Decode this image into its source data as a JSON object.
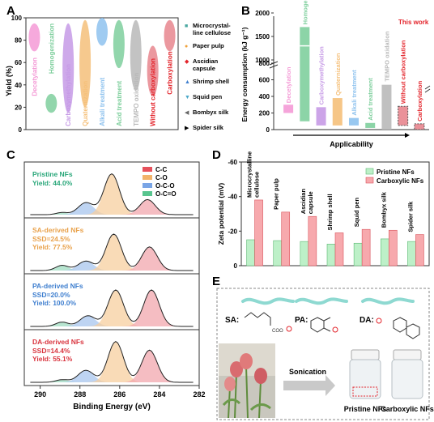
{
  "panels": {
    "a": "A",
    "b": "B",
    "c": "C",
    "d": "D",
    "e": "E"
  },
  "colors": {
    "pink": "#f49ad6",
    "green": "#7fcf9d",
    "purple": "#c69ae6",
    "orange": "#f5c07a",
    "blue": "#8ec2ee",
    "grey": "#b9b9b9",
    "red": "#e8868e"
  },
  "chart_data": [
    {
      "type": "scatter",
      "panel": "A",
      "ylabel": "Yield (%)",
      "ylim": [
        0,
        100
      ],
      "yticks": [
        "0",
        "20",
        "40",
        "60",
        "80",
        "100"
      ],
      "methods": [
        {
          "label": "Decetylation",
          "color": "#f49ad6",
          "range": [
            70,
            95
          ]
        },
        {
          "label": "Homogenization",
          "color": "#7fcf9d",
          "range": [
            15,
            32
          ]
        },
        {
          "label": "Carboxymethylation",
          "color": "#c69ae6",
          "range": [
            15,
            95
          ]
        },
        {
          "label": "Quaternization",
          "color": "#f5c07a",
          "range": [
            20,
            98
          ]
        },
        {
          "label": "Alkali treatment",
          "color": "#8ec2ee",
          "range": [
            75,
            100
          ]
        },
        {
          "label": "Acid treatment",
          "color": "#7fcf9d",
          "range": [
            55,
            98
          ]
        },
        {
          "label": "TEMPO oxidation",
          "color": "#b9b9b9",
          "range": [
            35,
            98
          ]
        },
        {
          "label": "Without carboxylation",
          "color": "#e8868e",
          "range": [
            30,
            75
          ]
        },
        {
          "label": "Carboxylation",
          "color": "#e8868e",
          "range": [
            70,
            98
          ]
        }
      ],
      "legend": [
        "Microcrystal-line cellulose",
        "Paper pulp",
        "Ascidian capsule",
        "Shrimp shell",
        "Squid pen",
        "Bombyx silk",
        "Spider silk"
      ]
    },
    {
      "type": "bar",
      "panel": "B",
      "ylabel": "Energy consumption (kJ g⁻¹)",
      "xlabel": "Applicability",
      "yticks": [
        "0",
        "200",
        "400",
        "600",
        "800",
        "1000",
        "1500",
        "2000"
      ],
      "annotation": "This work",
      "categories": [
        "Decetylation",
        "Homogenization",
        "Carboxymethylation",
        "Quaternization",
        "Alkali treatment",
        "Acid treatment",
        "TEMPO oxidation",
        "Without carboxylation",
        "Carboxylation"
      ],
      "ranges": [
        [
          200,
          300
        ],
        [
          100,
          1700
        ],
        [
          50,
          270
        ],
        [
          50,
          380
        ],
        [
          50,
          140
        ],
        [
          20,
          80
        ],
        [
          0,
          540
        ],
        [
          50,
          280
        ],
        [
          0,
          70
        ]
      ]
    },
    {
      "type": "line",
      "panel": "C",
      "xlabel": "Binding Energy (eV)",
      "xticks": [
        "290",
        "288",
        "286",
        "284",
        "282"
      ],
      "legend": [
        "C-C",
        "C-O",
        "O-C-O",
        "O-C=O"
      ],
      "samples": [
        {
          "name": "Pristine NFs",
          "stats": [
            "Yield: 44.0%"
          ],
          "color": "#2aa77a"
        },
        {
          "name": "SA-derived NFs",
          "stats": [
            "SSD=24.5%",
            "Yield: 77.5%"
          ],
          "color": "#e9a24c"
        },
        {
          "name": "PA-derived NFs",
          "stats": [
            "SSD=20.0%",
            "Yield: 100.0%"
          ],
          "color": "#3f7fcf"
        },
        {
          "name": "DA-derived NFs",
          "stats": [
            "SSD=14.4%",
            "Yield: 55.1%"
          ],
          "color": "#d9353f"
        }
      ]
    },
    {
      "type": "bar",
      "panel": "D",
      "ylabel": "Zeta potential (mV)",
      "yticks": [
        "-60",
        "-40",
        "-20",
        "0"
      ],
      "ylim": [
        0,
        -60
      ],
      "categories": [
        "Microcrystalline cellulose",
        "Paper pulp",
        "Ascidian capsule",
        "Shrimp shell",
        "Squid pen",
        "Bombyx silk",
        "Spider silk"
      ],
      "series": [
        {
          "name": "Pristine NFs",
          "values": [
            -15,
            -14.5,
            -14,
            -12.5,
            -13,
            -15.5,
            -14
          ]
        },
        {
          "name": "Carboxylic NFs",
          "values": [
            -38,
            -31,
            -28.5,
            -19,
            -21,
            -20.5,
            -18
          ]
        }
      ]
    }
  ],
  "panelE": {
    "sa": "SA:",
    "pa": "PA:",
    "da": "DA:",
    "arrow": "Sonication",
    "vial1": "Pristine NFs",
    "vial2": "Carboxylic NFs"
  }
}
